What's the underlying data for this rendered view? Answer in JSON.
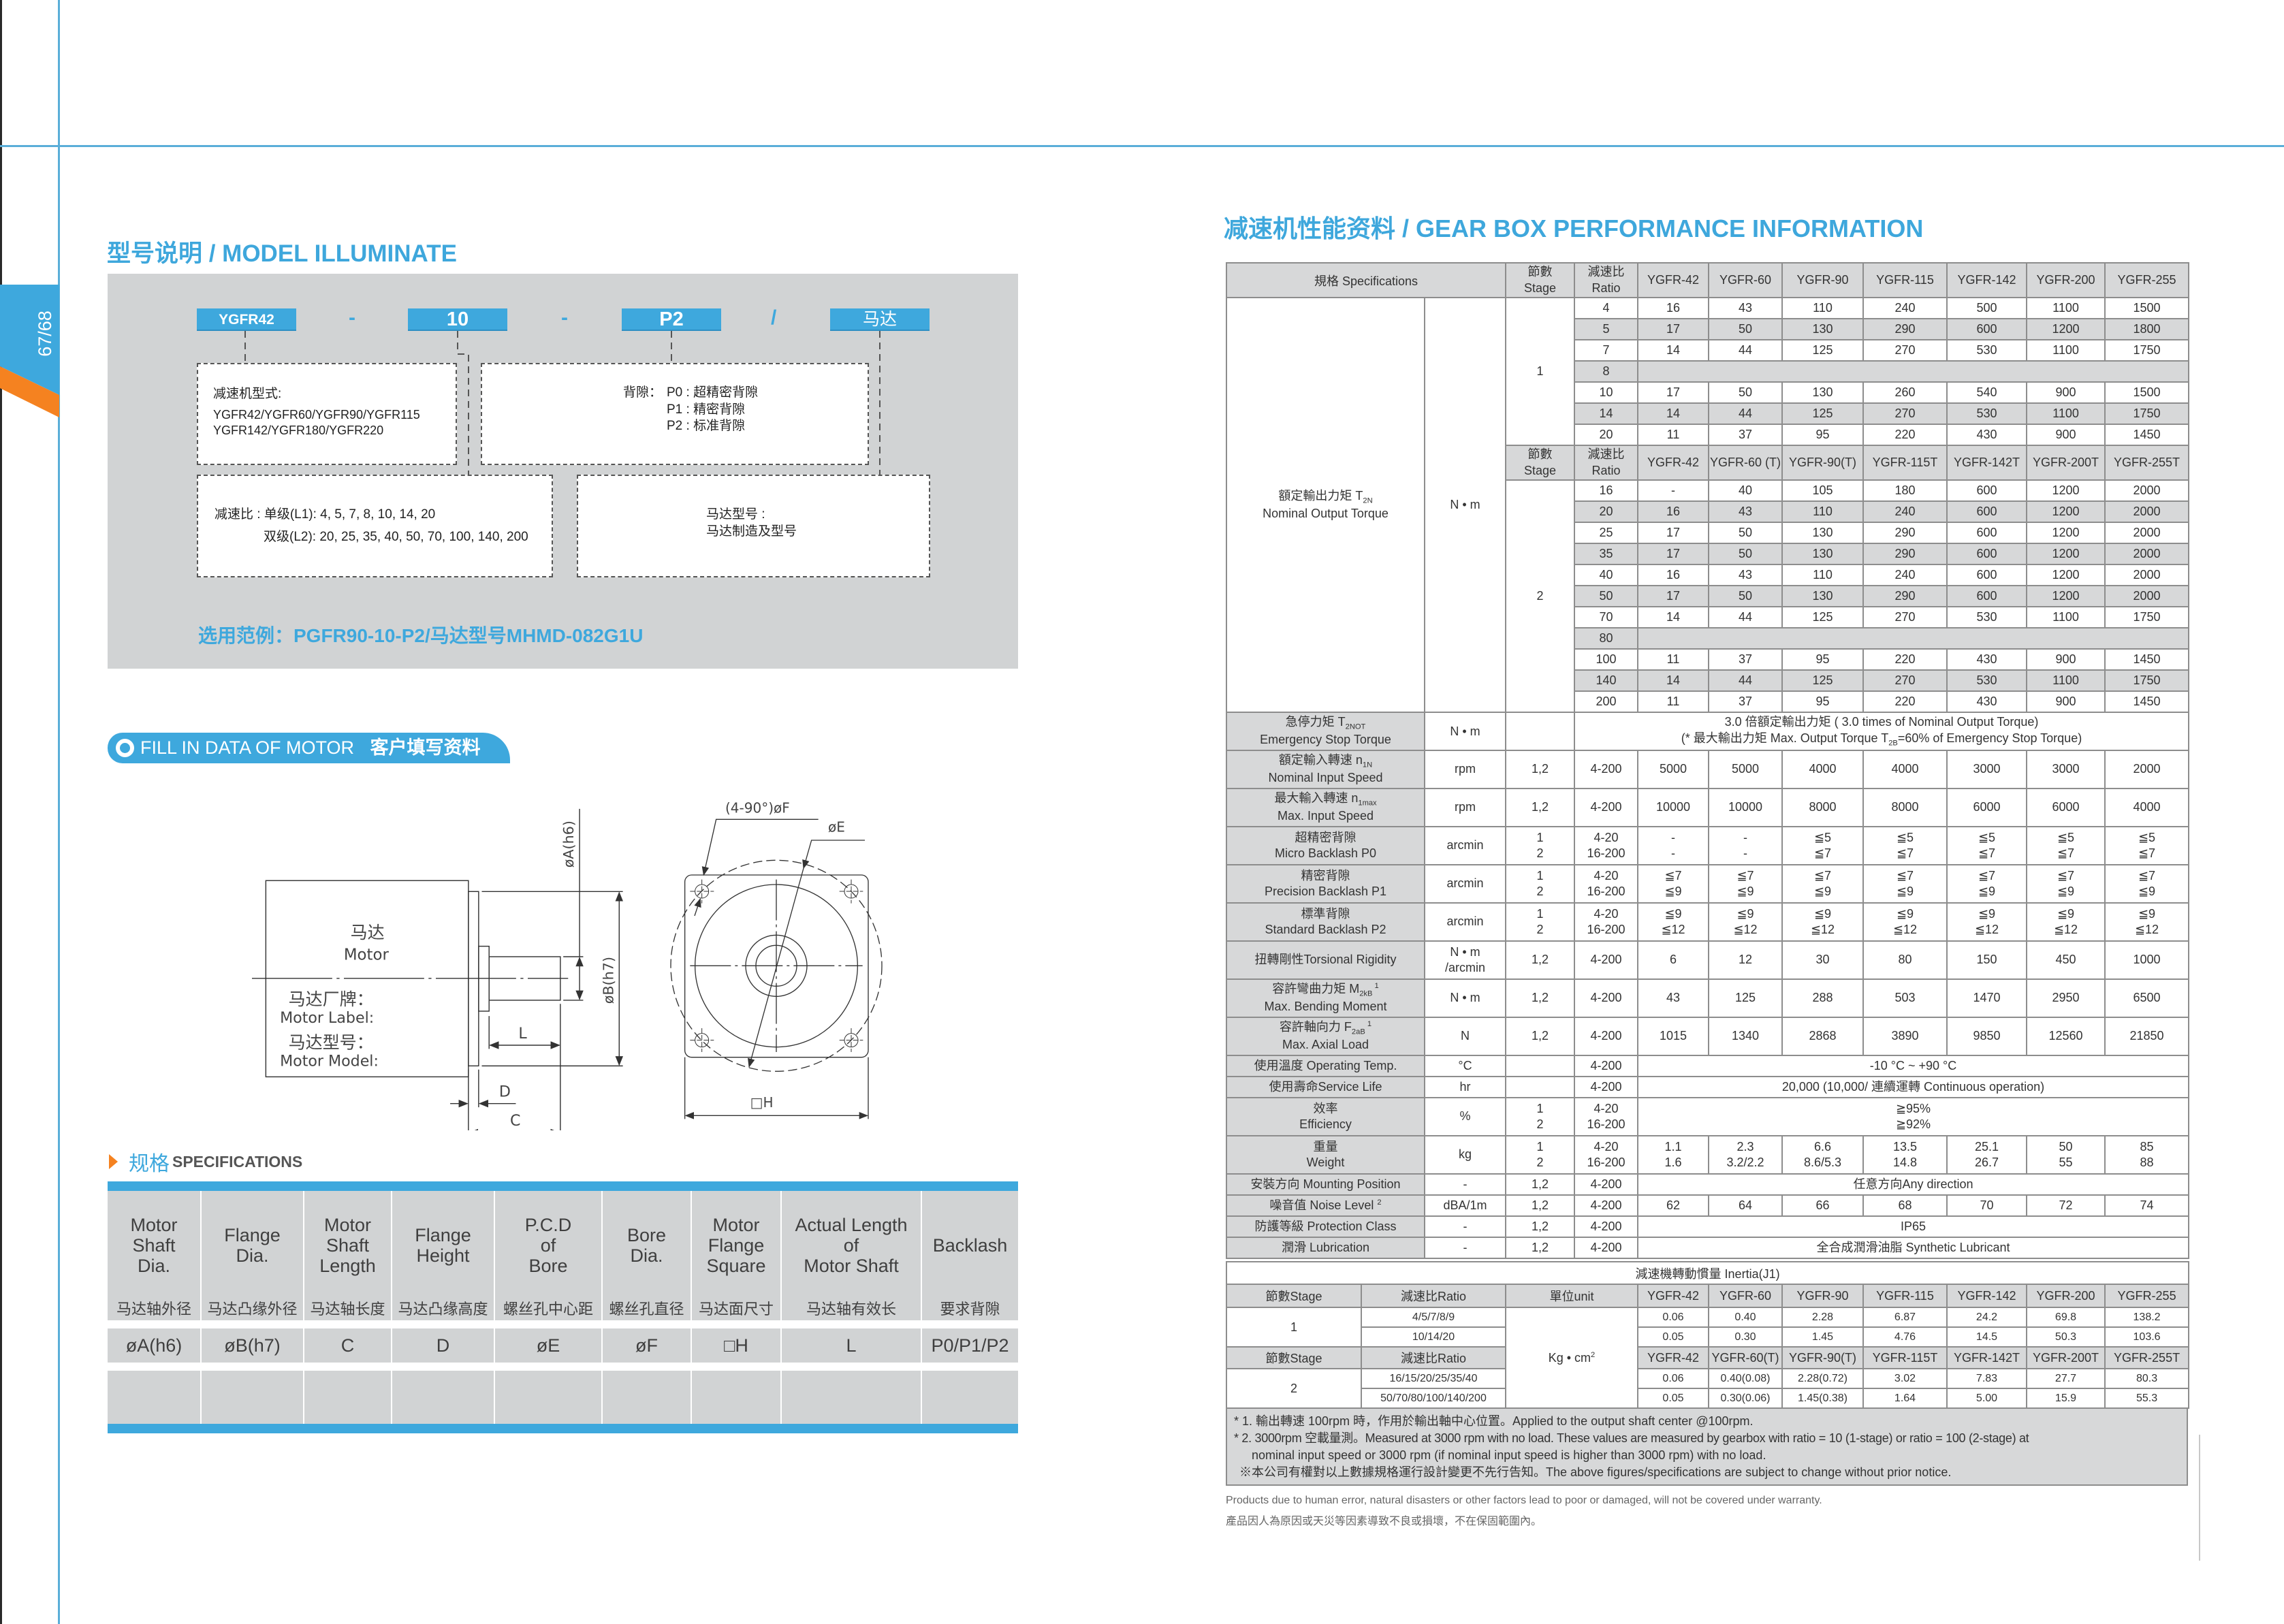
{
  "colors": {
    "accent": "#3ea8dd",
    "orange": "#f58220",
    "panel_gray": "#d1d3d4"
  },
  "page_tab": "67/68",
  "model": {
    "title": "型号说明 / MODEL ILLUMINATE",
    "labels": [
      "YGFR42",
      "10",
      "P2",
      "马达"
    ],
    "separators": [
      "-",
      "-",
      "/"
    ],
    "box_type": {
      "title": "减速机型式:",
      "lines": [
        "YGFR42/YGFR60/YGFR90/YGFR115",
        "YGFR142/YGFR180/YGFR220"
      ]
    },
    "box_backlash": {
      "title": "背隙：",
      "items": [
        "P0 : 超精密背隙",
        "P1 : 精密背隙",
        "P2 : 标准背隙"
      ]
    },
    "box_ratio": {
      "line1": "减速比 : 单级(L1): 4, 5, 7, 8, 10, 14, 20",
      "line2": "双级(L2): 20, 25, 35, 40, 50, 70, 100, 140, 200"
    },
    "box_motor": {
      "line1": "马达型号 :",
      "line2": "马达制造及型号"
    },
    "example": "选用范例：PGFR90-10-P2/马达型号MHMD-082G1U"
  },
  "fill_in": {
    "en": "FILL IN DATA OF MOTOR",
    "zh": "客户填写资料"
  },
  "drawing": {
    "motor_zh": "马达",
    "motor_en": "Motor",
    "label_zh": "马达厂牌：",
    "label_en": "Motor Label:",
    "model_zh": "马达型号：",
    "model_en": "Motor Model:",
    "dims": {
      "A": "øA(h6)",
      "B": "øB(h7)",
      "L": "L",
      "D": "D",
      "C": "C",
      "F": "(4-90°)øF",
      "E": "øE",
      "H": "□H"
    }
  },
  "specs": {
    "heading_zh": "规格",
    "heading_en": "SPECIFICATIONS",
    "columns": [
      {
        "en": [
          "Motor",
          "Shaft",
          "Dia."
        ],
        "zh": "马达轴外径",
        "symbol": "øA(h6)"
      },
      {
        "en": [
          "Flange",
          "Dia."
        ],
        "zh": "马达凸缘外径",
        "symbol": "øB(h7)"
      },
      {
        "en": [
          "Motor",
          "Shaft",
          "Length"
        ],
        "zh": "马达轴长度",
        "symbol": "C"
      },
      {
        "en": [
          "Flange",
          "Height"
        ],
        "zh": "马达凸缘高度",
        "symbol": "D"
      },
      {
        "en": [
          "P.C.D",
          "of",
          "Bore"
        ],
        "zh": "螺丝孔中心距",
        "symbol": "øE"
      },
      {
        "en": [
          "Bore",
          "Dia."
        ],
        "zh": "螺丝孔直径",
        "symbol": "øF"
      },
      {
        "en": [
          "Motor",
          "Flange",
          "Square"
        ],
        "zh": "马达面尺寸",
        "symbol": "□H"
      },
      {
        "en": [
          "Actual Length",
          "of",
          "Motor Shaft"
        ],
        "zh": "马达轴有效长",
        "symbol": "L"
      },
      {
        "en": [
          "Backlash"
        ],
        "zh": "要求背隙",
        "symbol": "P0/P1/P2"
      }
    ]
  },
  "gearbox": {
    "title": "减速机性能资料 / GEAR BOX PERFORMANCE INFORMATION",
    "header": {
      "spec": "規格 Specifications",
      "stage": [
        "節數",
        "Stage"
      ],
      "ratio": [
        "減速比",
        "Ratio"
      ],
      "models": [
        "YGFR-42",
        "YGFR-60",
        "YGFR-90",
        "YGFR-115",
        "YGFR-142",
        "YGFR-200",
        "YGFR-255"
      ]
    },
    "torque": {
      "label": [
        [
          {
            "t": "額定輸出力矩 T"
          },
          {
            "sub": "2N"
          }
        ],
        [
          {
            "t": "Nominal Output Torque"
          }
        ]
      ],
      "unit": "N • m",
      "stage1": {
        "stage": "1",
        "rows": [
          {
            "ratio": "4",
            "values": [
              "16",
              "43",
              "110",
              "240",
              "500",
              "1100",
              "1500"
            ]
          },
          {
            "ratio": "5",
            "values": [
              "17",
              "50",
              "130",
              "290",
              "600",
              "1200",
              "1800"
            ]
          },
          {
            "ratio": "7",
            "values": [
              "14",
              "44",
              "125",
              "270",
              "530",
              "1100",
              "1750"
            ]
          },
          {
            "ratio": "8",
            "values": []
          },
          {
            "ratio": "10",
            "values": [
              "17",
              "50",
              "130",
              "260",
              "540",
              "900",
              "1500"
            ]
          },
          {
            "ratio": "14",
            "values": [
              "14",
              "44",
              "125",
              "270",
              "530",
              "1100",
              "1750"
            ]
          },
          {
            "ratio": "20",
            "values": [
              "11",
              "37",
              "95",
              "220",
              "430",
              "900",
              "1450"
            ]
          }
        ]
      },
      "stage2": {
        "stage": "2",
        "models": [
          "YGFR-42",
          "YGFR-60 (T)",
          "YGFR-90(T)",
          "YGFR-115T",
          "YGFR-142T",
          "YGFR-200T",
          "YGFR-255T"
        ],
        "rows": [
          {
            "ratio": "16",
            "values": [
              "-",
              "40",
              "105",
              "180",
              "600",
              "1200",
              "2000"
            ]
          },
          {
            "ratio": "20",
            "values": [
              "16",
              "43",
              "110",
              "240",
              "600",
              "1200",
              "2000"
            ]
          },
          {
            "ratio": "25",
            "values": [
              "17",
              "50",
              "130",
              "290",
              "600",
              "1200",
              "2000"
            ]
          },
          {
            "ratio": "35",
            "values": [
              "17",
              "50",
              "130",
              "290",
              "600",
              "1200",
              "2000"
            ]
          },
          {
            "ratio": "40",
            "values": [
              "16",
              "43",
              "110",
              "240",
              "600",
              "1200",
              "2000"
            ]
          },
          {
            "ratio": "50",
            "values": [
              "17",
              "50",
              "130",
              "290",
              "600",
              "1200",
              "2000"
            ]
          },
          {
            "ratio": "70",
            "values": [
              "14",
              "44",
              "125",
              "270",
              "530",
              "1100",
              "1750"
            ]
          },
          {
            "ratio": "80",
            "values": []
          },
          {
            "ratio": "100",
            "values": [
              "11",
              "37",
              "95",
              "220",
              "430",
              "900",
              "1450"
            ]
          },
          {
            "ratio": "140",
            "values": [
              "14",
              "44",
              "125",
              "270",
              "530",
              "1100",
              "1750"
            ]
          },
          {
            "ratio": "200",
            "values": [
              "11",
              "37",
              "95",
              "220",
              "430",
              "900",
              "1450"
            ]
          }
        ]
      }
    },
    "emergency": {
      "label": [
        [
          {
            "t": "急停力矩 T"
          },
          {
            "sub": "2NOT"
          }
        ],
        [
          {
            "t": "Emergency Stop Torque"
          }
        ]
      ],
      "unit": "N • m",
      "text": [
        [
          {
            "t": "3.0 倍額定輸出力矩 ( 3.0 times of Nominal Output Torque)"
          }
        ],
        [
          {
            "t": "(* 最大輸出力矩 Max. Output Torque T"
          },
          {
            "sub": "2B"
          },
          {
            "t": "=60% of Emergency Stop Torque)"
          }
        ]
      ]
    },
    "rows": [
      {
        "label": [
          [
            {
              "t": "額定輸入轉速 n"
            },
            {
              "sub": "1N"
            }
          ],
          [
            {
              "t": "Nominal Input Speed"
            }
          ]
        ],
        "unit": [
          "rpm"
        ],
        "stage": [
          "1,2"
        ],
        "ratio": [
          "4-200"
        ],
        "values": [
          [
            "5000",
            "5000",
            "4000",
            "4000",
            "3000",
            "3000",
            "2000"
          ]
        ]
      },
      {
        "label": [
          [
            {
              "t": "最大輸入轉速 n"
            },
            {
              "sub": "1max"
            }
          ],
          [
            {
              "t": "Max. Input Speed"
            }
          ]
        ],
        "unit": [
          "rpm"
        ],
        "stage": [
          "1,2"
        ],
        "ratio": [
          "4-200"
        ],
        "values": [
          [
            "10000",
            "10000",
            "8000",
            "8000",
            "6000",
            "6000",
            "4000"
          ]
        ]
      },
      {
        "label": [
          [
            {
              "t": "超精密背隙"
            }
          ],
          [
            {
              "t": "Micro Backlash P0"
            }
          ]
        ],
        "unit": [
          "arcmin"
        ],
        "stage": [
          "1",
          "2"
        ],
        "ratio": [
          "4-20",
          "16-200"
        ],
        "values": [
          [
            "-",
            "-",
            "≦5",
            "≦5",
            "≦5",
            "≦5",
            "≦5"
          ],
          [
            "-",
            "-",
            "≦7",
            "≦7",
            "≦7",
            "≦7",
            "≦7"
          ]
        ]
      },
      {
        "label": [
          [
            {
              "t": "精密背隙"
            }
          ],
          [
            {
              "t": "Precision Backlash P1"
            }
          ]
        ],
        "unit": [
          "arcmin"
        ],
        "stage": [
          "1",
          "2"
        ],
        "ratio": [
          "4-20",
          "16-200"
        ],
        "values": [
          [
            "≦7",
            "≦7",
            "≦7",
            "≦7",
            "≦7",
            "≦7",
            "≦7"
          ],
          [
            "≦9",
            "≦9",
            "≦9",
            "≦9",
            "≦9",
            "≦9",
            "≦9"
          ]
        ]
      },
      {
        "label": [
          [
            {
              "t": "標準背隙"
            }
          ],
          [
            {
              "t": "Standard Backlash P2"
            }
          ]
        ],
        "unit": [
          "arcmin"
        ],
        "stage": [
          "1",
          "2"
        ],
        "ratio": [
          "4-20",
          "16-200"
        ],
        "values": [
          [
            "≦9",
            "≦9",
            "≦9",
            "≦9",
            "≦9",
            "≦9",
            "≦9"
          ],
          [
            "≦12",
            "≦12",
            "≦12",
            "≦12",
            "≦12",
            "≦12",
            "≦12"
          ]
        ]
      },
      {
        "label": [
          [
            {
              "t": "扭轉剛性Torsional Rigidity"
            }
          ]
        ],
        "unit": [
          "N • m",
          "/arcmin"
        ],
        "stage": [
          "1,2"
        ],
        "ratio": [
          "4-200"
        ],
        "values": [
          [
            "6",
            "12",
            "30",
            "80",
            "150",
            "450",
            "1000"
          ]
        ]
      },
      {
        "label": [
          [
            {
              "t": "容許彎曲力矩 M"
            },
            {
              "sub": "2kB"
            },
            {
              "sup": " 1"
            }
          ],
          [
            {
              "t": "Max. Bending Moment"
            }
          ]
        ],
        "unit": [
          "N • m"
        ],
        "stage": [
          "1,2"
        ],
        "ratio": [
          "4-200"
        ],
        "values": [
          [
            "43",
            "125",
            "288",
            "503",
            "1470",
            "2950",
            "6500"
          ]
        ]
      },
      {
        "label": [
          [
            {
              "t": "容許軸向力 F"
            },
            {
              "sub": "2aB"
            },
            {
              "sup": " 1"
            }
          ],
          [
            {
              "t": "Max. Axial Load"
            }
          ]
        ],
        "unit": [
          "N"
        ],
        "stage": [
          "1,2"
        ],
        "ratio": [
          "4-200"
        ],
        "values": [
          [
            "1015",
            "1340",
            "2868",
            "3890",
            "9850",
            "12560",
            "21850"
          ]
        ]
      },
      {
        "label": [
          [
            {
              "t": "使用溫度 Operating Temp."
            }
          ]
        ],
        "unit": [
          "°C"
        ],
        "stage": [
          ""
        ],
        "ratio": [
          "4-200"
        ],
        "span": [
          "-10 °C ~ +90 °C"
        ]
      },
      {
        "label": [
          [
            {
              "t": "使用壽命Service Life"
            }
          ]
        ],
        "unit": [
          "hr"
        ],
        "stage": [
          ""
        ],
        "ratio": [
          "4-200"
        ],
        "span": [
          "20,000 (10,000/ 連續運轉 Continuous operation)"
        ]
      },
      {
        "label": [
          [
            {
              "t": "效率"
            }
          ],
          [
            {
              "t": "Efficiency"
            }
          ]
        ],
        "unit": [
          "%"
        ],
        "stage": [
          "1",
          "2"
        ],
        "ratio": [
          "4-20",
          "16-200"
        ],
        "span": [
          "≧95%",
          "≧92%"
        ]
      },
      {
        "label": [
          [
            {
              "t": "重量"
            }
          ],
          [
            {
              "t": "Weight"
            }
          ]
        ],
        "unit": [
          "kg"
        ],
        "stage": [
          "1",
          "2"
        ],
        "ratio": [
          "4-20",
          "16-200"
        ],
        "values": [
          [
            "1.1",
            "2.3",
            "6.6",
            "13.5",
            "25.1",
            "50",
            "85"
          ],
          [
            "1.6",
            "3.2/2.2",
            "8.6/5.3",
            "14.8",
            "26.7",
            "55",
            "88"
          ]
        ]
      },
      {
        "label": [
          [
            {
              "t": "安裝方向 Mounting Position"
            }
          ]
        ],
        "unit": [
          "-"
        ],
        "stage": [
          "1,2"
        ],
        "ratio": [
          "4-200"
        ],
        "span": [
          "任意方向Any direction"
        ]
      },
      {
        "label": [
          [
            {
              "t": "噪音值 Noise Level "
            },
            {
              "sup": "2"
            }
          ]
        ],
        "unit": [
          "dBA/1m"
        ],
        "stage": [
          "1,2"
        ],
        "ratio": [
          "4-200"
        ],
        "values": [
          [
            "62",
            "64",
            "66",
            "68",
            "70",
            "72",
            "74"
          ]
        ]
      },
      {
        "label": [
          [
            {
              "t": "防護等級 Protection Class"
            }
          ]
        ],
        "unit": [
          "-"
        ],
        "stage": [
          "1,2"
        ],
        "ratio": [
          "4-200"
        ],
        "span": [
          "IP65"
        ]
      },
      {
        "label": [
          [
            {
              "t": "潤滑 Lubrication"
            }
          ]
        ],
        "unit": [
          "-"
        ],
        "stage": [
          "1,2"
        ],
        "ratio": [
          "4-200"
        ],
        "span": [
          "全合成潤滑油脂  Synthetic Lubricant"
        ]
      }
    ],
    "inertia": {
      "title": "減速機轉動慣量 Inertia(J1)",
      "header": [
        "節數Stage",
        "減速比Ratio",
        "單位unit"
      ],
      "unit": [
        {
          "t": "Kg • cm"
        },
        {
          "sup": "2"
        }
      ],
      "models1": [
        "YGFR-42",
        "YGFR-60",
        "YGFR-90",
        "YGFR-115",
        "YGFR-142",
        "YGFR-200",
        "YGFR-255"
      ],
      "models2": [
        "YGFR-42",
        "YGFR-60(T)",
        "YGFR-90(T)",
        "YGFR-115T",
        "YGFR-142T",
        "YGFR-200T",
        "YGFR-255T"
      ],
      "stage1": {
        "stage": "1",
        "rows": [
          {
            "ratio": "4/5/7/8/9",
            "values": [
              "0.06",
              "0.40",
              "2.28",
              "6.87",
              "24.2",
              "69.8",
              "138.2"
            ]
          },
          {
            "ratio": "10/14/20",
            "values": [
              "0.05",
              "0.30",
              "1.45",
              "4.76",
              "14.5",
              "50.3",
              "103.6"
            ]
          }
        ]
      },
      "stage2": {
        "stage": "2",
        "rows": [
          {
            "ratio": "16/15/20/25/35/40",
            "values": [
              "0.06",
              "0.40(0.08)",
              "2.28(0.72)",
              "3.02",
              "7.83",
              "27.7",
              "80.3"
            ]
          },
          {
            "ratio": "50/70/80/100/140/200",
            "values": [
              "0.05",
              "0.30(0.06)",
              "1.45(0.38)",
              "1.64",
              "5.00",
              "15.9",
              "55.3"
            ]
          }
        ]
      }
    },
    "notes": [
      "* 1. 輸出轉速 100rpm 時，作用於輸出軸中心位置。Applied to the output shaft center @100rpm.",
      "* 2. 3000rpm 空載量測。Measured at 3000 rpm with no load. These values are measured by gearbox with ratio = 10 (1-stage) or ratio = 100 (2-stage) at",
      "nominal input speed or 3000 rpm (if nominal input speed is higher than 3000 rpm) with no load.",
      "※本公司有權對以上數據規格運行設計變更不先行告知。The above figures/specifications are subject to change without prior notice."
    ],
    "disclaimer_en": "Products due to human error, natural disasters or other factors lead to poor or damaged, will not be covered under warranty.",
    "disclaimer_zh": "產品因人為原因或天災等因素導致不良或損壞，不在保固範圍內。"
  }
}
